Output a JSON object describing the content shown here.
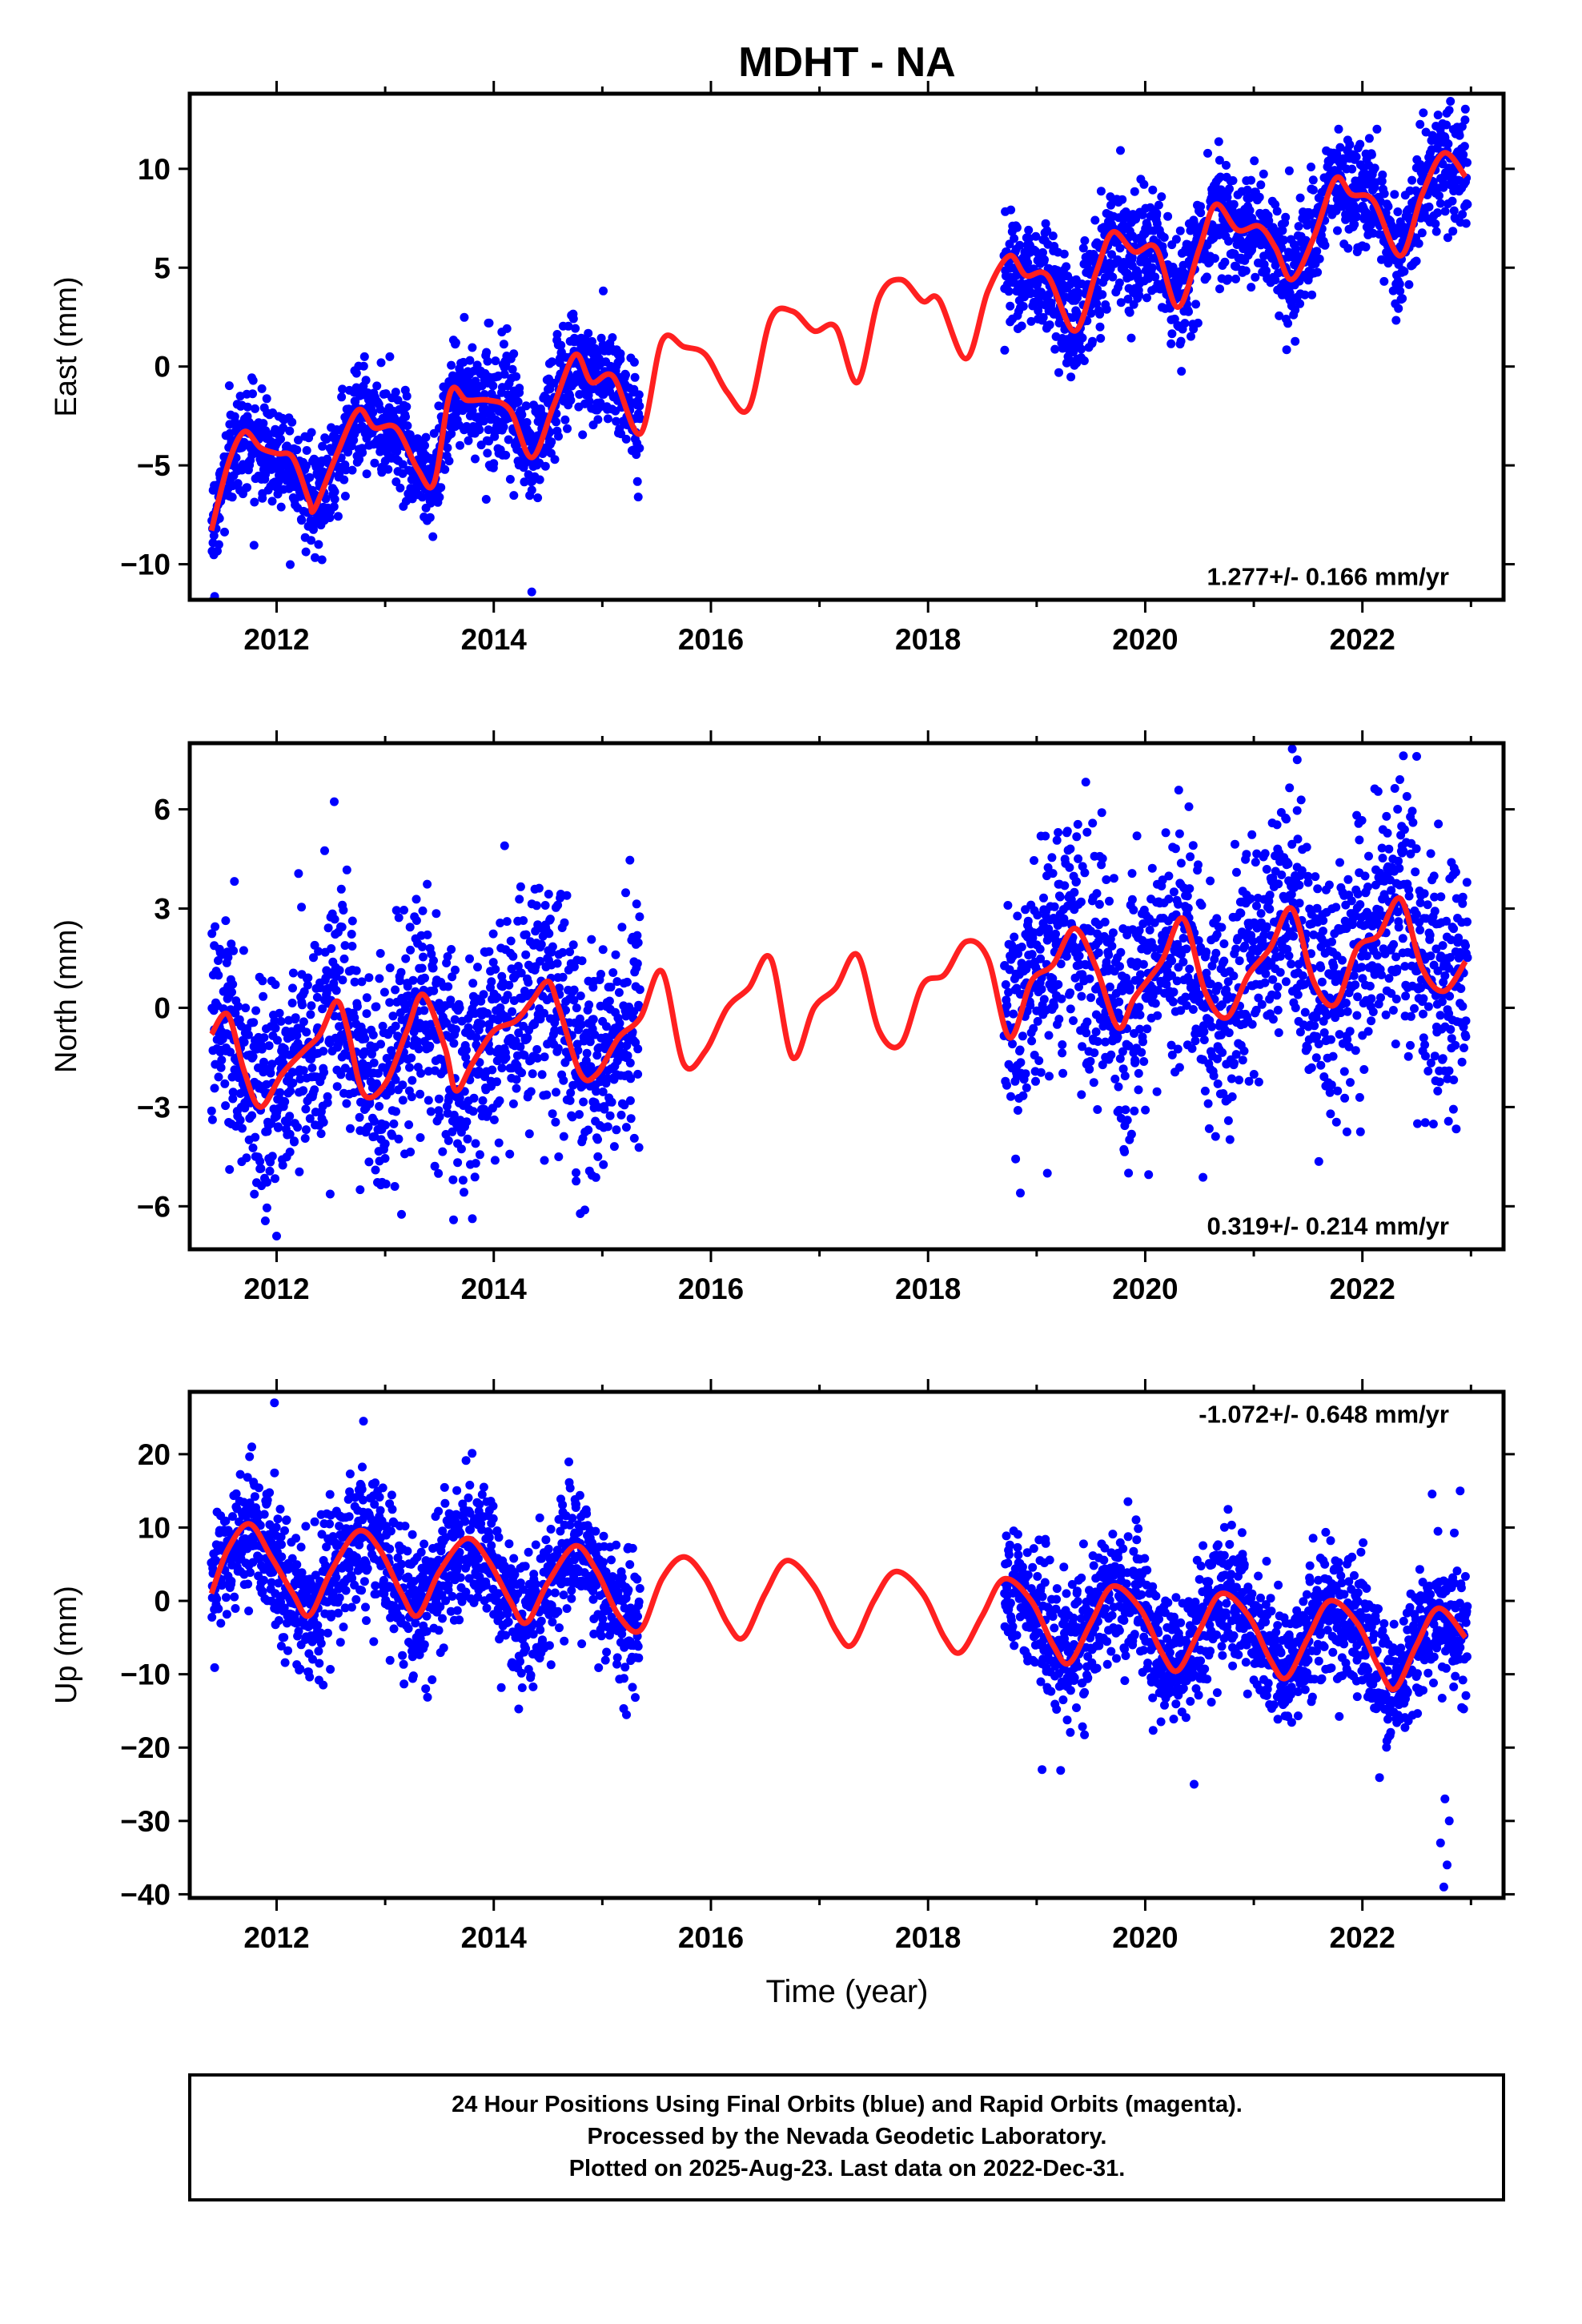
{
  "title": "MDHT - NA",
  "xlabel": "Time (year)",
  "caption": {
    "line1": "24 Hour Positions Using Final Orbits (blue) and Rapid Orbits (magenta).",
    "line2": "Processed by the Nevada Geodetic Laboratory.",
    "line3": "Plotted on 2025-Aug-23. Last data on 2022-Dec-31."
  },
  "colors": {
    "points": "#0000ff",
    "model": "#ff2020",
    "frame": "#000000"
  },
  "chart_data": [
    {
      "type": "scatter",
      "component": "east",
      "ylabel": "East (mm)",
      "rate_label": "1.277+/- 0.166 mm/yr",
      "xlim": [
        2011.2,
        2023.3
      ],
      "ylim": [
        -11.8,
        13.8
      ],
      "xticks": [
        2012,
        2014,
        2016,
        2018,
        2020,
        2022
      ],
      "yticks": [
        -10,
        -5,
        0,
        5,
        10
      ],
      "ytick_labels": [
        "−10",
        "−5",
        "0",
        "5",
        "10"
      ],
      "model_curve": {
        "x": [
          2011.4,
          2011.55,
          2011.7,
          2011.85,
          2012.0,
          2012.15,
          2012.3,
          2012.35,
          2012.55,
          2012.75,
          2012.9,
          2013.1,
          2013.3,
          2013.45,
          2013.6,
          2013.75,
          2013.95,
          2014.15,
          2014.35,
          2014.55,
          2014.75,
          2014.9,
          2015.1,
          2015.35,
          2015.55,
          2015.75,
          2015.95,
          2016.15,
          2016.35,
          2016.55,
          2016.75,
          2016.95,
          2017.15,
          2017.35,
          2017.55,
          2017.75,
          2017.95,
          2018.1,
          2018.35,
          2018.55,
          2018.75,
          2018.9,
          2019.1,
          2019.35,
          2019.55,
          2019.7,
          2019.9,
          2020.1,
          2020.3,
          2020.5,
          2020.65,
          2020.85,
          2021.05,
          2021.2,
          2021.35,
          2021.55,
          2021.75,
          2021.9,
          2022.1,
          2022.35,
          2022.55,
          2022.75,
          2022.95
        ],
        "y": [
          -8.3,
          -5.0,
          -3.3,
          -4.1,
          -4.4,
          -4.6,
          -6.8,
          -7.2,
          -4.5,
          -2.2,
          -3.1,
          -3.1,
          -5.2,
          -5.9,
          -1.3,
          -1.7,
          -1.7,
          -2.2,
          -4.6,
          -2.0,
          0.6,
          -0.8,
          -0.5,
          -3.4,
          1.3,
          1.0,
          0.6,
          -1.3,
          -2.1,
          2.4,
          2.8,
          1.8,
          2.0,
          -0.8,
          3.5,
          4.4,
          3.3,
          3.4,
          0.4,
          3.8,
          5.6,
          4.6,
          4.6,
          1.8,
          4.8,
          6.8,
          5.8,
          6.0,
          3.0,
          6.0,
          8.2,
          6.9,
          7.1,
          6.0,
          4.4,
          6.5,
          9.5,
          8.7,
          8.4,
          5.6,
          8.7,
          10.8,
          9.6
        ]
      },
      "observed": [
        {
          "start": 2011.4,
          "end": 2015.35,
          "offset": 0,
          "scatter": 1.3
        },
        {
          "start": 2018.7,
          "end": 2022.97,
          "offset": 0,
          "scatter": 1.4
        }
      ],
      "outliers": [
        {
          "x": 2014.35,
          "y": -11.4
        },
        {
          "x": 2013.95,
          "y": 2.2
        }
      ]
    },
    {
      "type": "scatter",
      "component": "north",
      "ylabel": "North (mm)",
      "rate_label": "0.319+/- 0.214 mm/yr",
      "xlim": [
        2011.2,
        2023.3
      ],
      "ylim": [
        -7.3,
        8.0
      ],
      "xticks": [
        2012,
        2014,
        2016,
        2018,
        2020,
        2022
      ],
      "yticks": [
        -6,
        -3,
        0,
        3,
        6
      ],
      "ytick_labels": [
        "−6",
        "−3",
        "0",
        "3",
        "6"
      ],
      "model_curve": {
        "x": [
          2011.4,
          2011.55,
          2011.7,
          2011.85,
          2012.05,
          2012.25,
          2012.4,
          2012.55,
          2012.65,
          2012.8,
          2013.0,
          2013.2,
          2013.35,
          2013.55,
          2013.65,
          2013.8,
          2014.0,
          2014.2,
          2014.35,
          2014.5,
          2014.6,
          2014.8,
          2014.95,
          2015.15,
          2015.35,
          2015.55,
          2015.75,
          2015.95,
          2016.15,
          2016.35,
          2016.55,
          2016.75,
          2016.95,
          2017.15,
          2017.35,
          2017.55,
          2017.75,
          2017.95,
          2018.15,
          2018.35,
          2018.55,
          2018.75,
          2018.95,
          2019.15,
          2019.35,
          2019.55,
          2019.75,
          2019.9,
          2020.15,
          2020.35,
          2020.55,
          2020.75,
          2020.95,
          2021.15,
          2021.35,
          2021.55,
          2021.75,
          2021.95,
          2022.15,
          2022.35,
          2022.55,
          2022.75,
          2022.95
        ],
        "y": [
          -0.8,
          -0.2,
          -1.9,
          -3.0,
          -2.0,
          -1.3,
          -0.8,
          0.2,
          -0.6,
          -2.6,
          -2.3,
          -0.7,
          0.4,
          -1.2,
          -2.5,
          -1.7,
          -0.7,
          -0.4,
          0.2,
          0.8,
          0.0,
          -2.0,
          -2.0,
          -0.9,
          -0.3,
          1.1,
          -1.7,
          -1.3,
          0.0,
          0.6,
          1.5,
          -1.5,
          0.0,
          0.6,
          1.6,
          -0.7,
          -1.1,
          0.7,
          1.0,
          2.0,
          1.5,
          -0.9,
          0.8,
          1.3,
          2.4,
          1.2,
          -0.6,
          0.3,
          1.4,
          2.7,
          0.5,
          -0.3,
          1.0,
          1.8,
          3.0,
          0.8,
          0.1,
          1.8,
          2.2,
          3.3,
          1.2,
          0.5,
          1.4
        ]
      },
      "observed": [
        {
          "start": 2011.4,
          "end": 2015.35,
          "offset": 0,
          "scatter": 1.7
        },
        {
          "start": 2018.7,
          "end": 2022.97,
          "offset": 0,
          "scatter": 1.8
        }
      ],
      "outliers": [
        {
          "x": 2012.0,
          "y": -6.9
        },
        {
          "x": 2014.1,
          "y": 4.9
        },
        {
          "x": 2019.6,
          "y": 5.9
        },
        {
          "x": 2021.4,
          "y": 7.5
        },
        {
          "x": 2022.5,
          "y": 7.6
        },
        {
          "x": 2018.85,
          "y": -5.6
        }
      ]
    },
    {
      "type": "scatter",
      "component": "up",
      "ylabel": "Up (mm)",
      "rate_label": "-1.072+/- 0.648 mm/yr",
      "xlim": [
        2011.2,
        2023.3
      ],
      "ylim": [
        -40.5,
        28.5
      ],
      "xticks": [
        2012,
        2014,
        2016,
        2018,
        2020,
        2022
      ],
      "yticks": [
        -40,
        -30,
        -20,
        -10,
        0,
        10,
        20
      ],
      "ytick_labels": [
        "−40",
        "−30",
        "−20",
        "−10",
        "0",
        "10",
        "20"
      ],
      "model_curve": {
        "x": [
          2011.4,
          2011.55,
          2011.75,
          2011.95,
          2012.15,
          2012.3,
          2012.5,
          2012.75,
          2012.95,
          2013.15,
          2013.3,
          2013.5,
          2013.75,
          2013.95,
          2014.15,
          2014.3,
          2014.5,
          2014.75,
          2014.95,
          2015.15,
          2015.35,
          2015.55,
          2015.75,
          2015.95,
          2016.15,
          2016.3,
          2016.5,
          2016.7,
          2016.95,
          2017.15,
          2017.3,
          2017.5,
          2017.7,
          2017.95,
          2018.15,
          2018.3,
          2018.5,
          2018.7,
          2018.95,
          2019.15,
          2019.3,
          2019.5,
          2019.7,
          2019.95,
          2020.15,
          2020.3,
          2020.5,
          2020.7,
          2020.95,
          2021.15,
          2021.3,
          2021.5,
          2021.7,
          2021.95,
          2022.15,
          2022.3,
          2022.5,
          2022.7,
          2022.95
        ],
        "y": [
          1.0,
          7.0,
          10.5,
          6.0,
          1.0,
          -2.0,
          4.0,
          9.5,
          7.0,
          1.0,
          -2.0,
          4.0,
          8.5,
          5.5,
          0.0,
          -3.0,
          2.5,
          7.5,
          4.0,
          -2.0,
          -4.0,
          3.0,
          6.0,
          3.0,
          -3.0,
          -5.0,
          1.0,
          5.5,
          2.0,
          -4.0,
          -6.0,
          0.0,
          4.0,
          1.0,
          -5.0,
          -7.0,
          -2.0,
          3.0,
          0.0,
          -6.0,
          -8.5,
          -3.0,
          2.0,
          -1.0,
          -7.0,
          -9.5,
          -4.0,
          1.0,
          -2.0,
          -8.0,
          -10.5,
          -5.0,
          0.0,
          -3.0,
          -9.0,
          -12.0,
          -6.0,
          -1.0,
          -5.0
        ]
      },
      "observed": [
        {
          "start": 2011.4,
          "end": 2015.35,
          "offset": 0,
          "scatter": 4.5
        },
        {
          "start": 2018.7,
          "end": 2022.97,
          "offset": 0,
          "scatter": 4.5
        }
      ],
      "outliers": [
        {
          "x": 2011.98,
          "y": 27.0
        },
        {
          "x": 2012.8,
          "y": 24.5
        },
        {
          "x": 2019.05,
          "y": -23.0
        },
        {
          "x": 2020.45,
          "y": -25.0
        },
        {
          "x": 2022.75,
          "y": -39.0
        },
        {
          "x": 2022.78,
          "y": -36.0
        },
        {
          "x": 2022.72,
          "y": -33.0
        },
        {
          "x": 2022.8,
          "y": -30.0
        },
        {
          "x": 2022.76,
          "y": -27.0
        },
        {
          "x": 2022.9,
          "y": 15.0
        }
      ]
    }
  ]
}
